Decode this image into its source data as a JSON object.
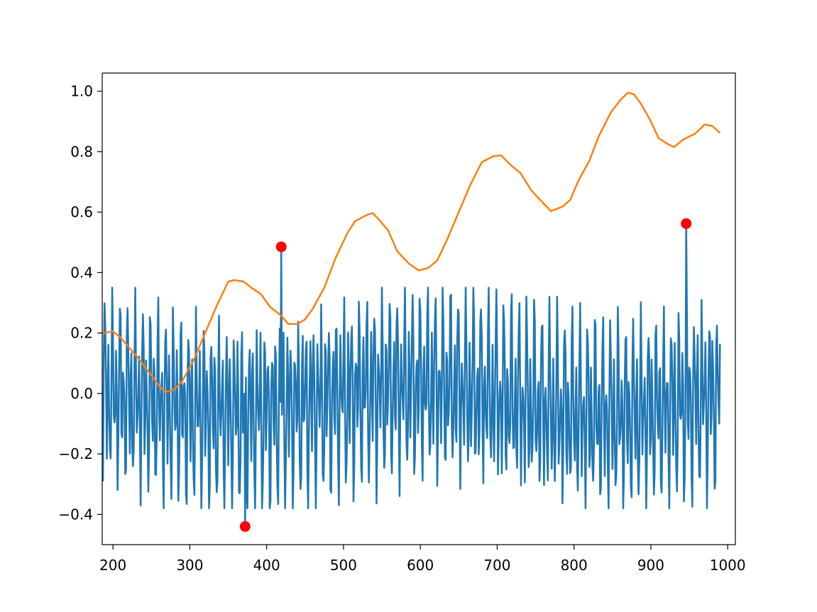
{
  "chart_data": {
    "type": "line",
    "title": "",
    "xlabel": "",
    "ylabel": "",
    "xlim": [
      186,
      1010
    ],
    "ylim": [
      -0.5,
      1.06
    ],
    "x_ticks": [
      200,
      300,
      400,
      500,
      600,
      700,
      800,
      900,
      1000
    ],
    "x_tick_labels": [
      "200",
      "300",
      "400",
      "500",
      "600",
      "700",
      "800",
      "900",
      "1000"
    ],
    "y_ticks": [
      -0.4,
      -0.2,
      0.0,
      0.2,
      0.4,
      0.6,
      0.8,
      1.0
    ],
    "y_tick_labels": [
      "−0.4",
      "−0.2",
      "0.0",
      "0.2",
      "0.4",
      "0.6",
      "0.8",
      "1.0"
    ],
    "grid": false,
    "legend": "none",
    "series": [
      {
        "kind": "signal",
        "color": "#1f77b4",
        "x_start": 186,
        "x_end": 990,
        "step": 1,
        "approx_band": [
          -0.38,
          0.35
        ],
        "description_values": "oscillating signal roughly between -0.38 and 0.35 with ~5 sample period",
        "spikes": [
          {
            "x": 372,
            "y": -0.44
          },
          {
            "x": 419,
            "y": 0.485
          },
          {
            "x": 946,
            "y": 0.562
          }
        ]
      },
      {
        "kind": "trend",
        "color": "#ff7f0e",
        "points": [
          [
            186,
            0.2
          ],
          [
            200,
            0.205
          ],
          [
            210,
            0.185
          ],
          [
            220,
            0.155
          ],
          [
            235,
            0.11
          ],
          [
            250,
            0.06
          ],
          [
            260,
            0.025
          ],
          [
            268,
            0.005
          ],
          [
            278,
            0.01
          ],
          [
            290,
            0.04
          ],
          [
            305,
            0.11
          ],
          [
            320,
            0.2
          ],
          [
            335,
            0.29
          ],
          [
            350,
            0.37
          ],
          [
            358,
            0.375
          ],
          [
            370,
            0.37
          ],
          [
            380,
            0.35
          ],
          [
            392,
            0.33
          ],
          [
            405,
            0.285
          ],
          [
            418,
            0.26
          ],
          [
            428,
            0.23
          ],
          [
            440,
            0.23
          ],
          [
            450,
            0.245
          ],
          [
            460,
            0.28
          ],
          [
            475,
            0.35
          ],
          [
            490,
            0.45
          ],
          [
            505,
            0.53
          ],
          [
            515,
            0.57
          ],
          [
            530,
            0.59
          ],
          [
            538,
            0.597
          ],
          [
            548,
            0.57
          ],
          [
            558,
            0.54
          ],
          [
            570,
            0.47
          ],
          [
            585,
            0.43
          ],
          [
            598,
            0.407
          ],
          [
            610,
            0.415
          ],
          [
            622,
            0.44
          ],
          [
            635,
            0.51
          ],
          [
            650,
            0.6
          ],
          [
            665,
            0.69
          ],
          [
            680,
            0.765
          ],
          [
            695,
            0.785
          ],
          [
            705,
            0.788
          ],
          [
            718,
            0.755
          ],
          [
            730,
            0.73
          ],
          [
            745,
            0.67
          ],
          [
            758,
            0.635
          ],
          [
            770,
            0.603
          ],
          [
            785,
            0.618
          ],
          [
            795,
            0.64
          ],
          [
            805,
            0.7
          ],
          [
            820,
            0.77
          ],
          [
            832,
            0.85
          ],
          [
            848,
            0.93
          ],
          [
            860,
            0.97
          ],
          [
            870,
            0.995
          ],
          [
            878,
            0.99
          ],
          [
            888,
            0.955
          ],
          [
            900,
            0.9
          ],
          [
            910,
            0.845
          ],
          [
            922,
            0.825
          ],
          [
            930,
            0.815
          ],
          [
            942,
            0.84
          ],
          [
            958,
            0.86
          ],
          [
            970,
            0.89
          ],
          [
            980,
            0.885
          ],
          [
            990,
            0.862
          ]
        ]
      }
    ],
    "markers": {
      "color": "#ff0000",
      "points": [
        {
          "x": 372,
          "y": -0.44
        },
        {
          "x": 419,
          "y": 0.485
        },
        {
          "x": 946,
          "y": 0.562
        }
      ]
    }
  }
}
